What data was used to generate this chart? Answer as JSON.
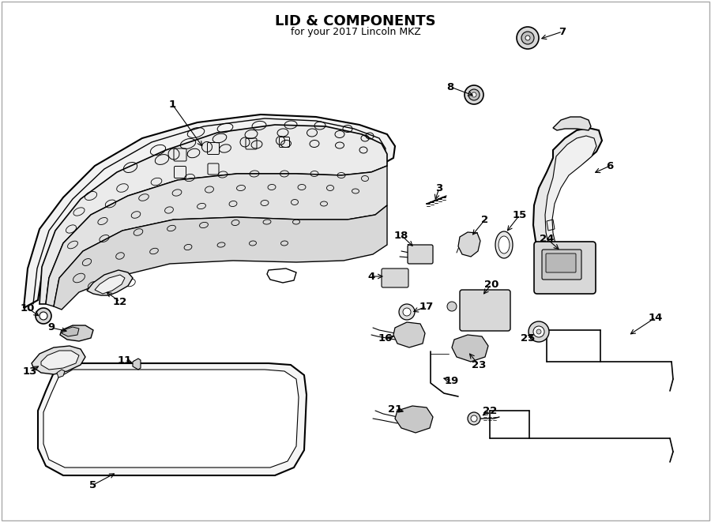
{
  "title": "LID & COMPONENTS",
  "subtitle": "for your 2017 Lincoln MKZ",
  "bg_color": "#ffffff",
  "line_color": "#000000",
  "text_color": "#000000",
  "fig_width": 9.0,
  "fig_height": 6.61
}
